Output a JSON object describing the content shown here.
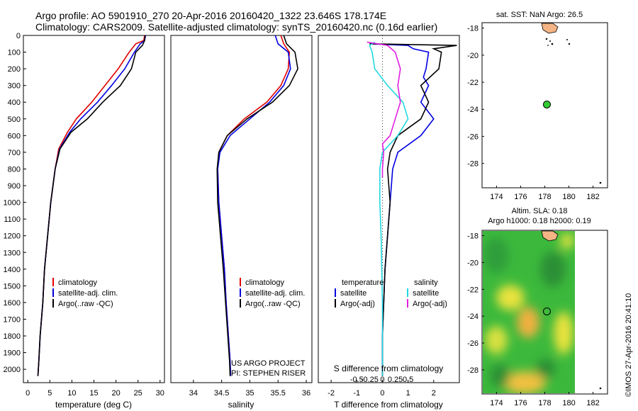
{
  "header": {
    "line1": "Argo profile: AO 5901910_270 20-Apr-2016 20160420_1322 23.646S 178.174E",
    "line2": "Climatology: CARS2009. Satellite-adjusted climatology: synTS_20160420.nc (0.16d earlier)"
  },
  "colors": {
    "climatology": "#e00000",
    "satellite": "#0000e0",
    "argo": "#000000",
    "salinity_sat": "#22d8e0",
    "salinity_argo": "#e020e0",
    "land": "#f4b483",
    "argo_marker": "#33cc33",
    "sla_green": "#3cb93c",
    "sla_yellow": "#e8e23c"
  },
  "depth_axis": {
    "ticks": [
      "0",
      "100",
      "200",
      "300",
      "400",
      "500",
      "600",
      "700",
      "800",
      "900",
      "1000",
      "1100",
      "1200",
      "1300",
      "1400",
      "1500",
      "1600",
      "1700",
      "1800",
      "1900",
      "2000"
    ],
    "range": [
      0,
      2080
    ]
  },
  "notes": {
    "project": "US ARGO PROJECT",
    "pi": "PI: STEPHEN RISER"
  },
  "map1": {
    "title": "sat. SST: NaN Argo: 26.5"
  },
  "map2": {
    "title1": "Altim. SLA: 0.18",
    "title2": "Argo h1000: 0.18 h2000: 0.19"
  },
  "credit": "©IMOS 27-Apr-2016 20:41:10",
  "chart_data": [
    {
      "type": "line",
      "name": "temperature-profile",
      "xlabel": "temperature (deg C)",
      "ylabel": "",
      "xlim": [
        -1,
        31
      ],
      "ylim": [
        2080,
        0
      ],
      "xticks": [
        0,
        5,
        10,
        15,
        20,
        25,
        30
      ],
      "legend": {
        "position": "bottom-left",
        "items": [
          "climatology",
          "satellite-adj. clim.",
          "Argo(..raw -QC)"
        ]
      },
      "series": [
        {
          "name": "climatology",
          "color": "#e00000",
          "x": [
            26.5,
            26.3,
            24.5,
            23.0,
            20.5,
            17.5,
            14.5,
            11.0,
            9.0,
            7.0,
            6.2,
            5.2,
            4.5,
            3.8,
            3.4,
            2.8,
            2.5,
            2.3
          ],
          "y": [
            0,
            30,
            50,
            100,
            200,
            300,
            400,
            500,
            580,
            680,
            800,
            1000,
            1200,
            1400,
            1600,
            1800,
            1950,
            2040
          ]
        },
        {
          "name": "satellite-adj. clim.",
          "color": "#0000e0",
          "x": [
            26.7,
            26.5,
            25.5,
            24.2,
            22.0,
            19.0,
            15.8,
            12.0,
            9.5,
            7.2,
            6.2,
            5.2,
            4.5,
            3.8,
            3.4,
            2.8,
            2.5,
            2.3
          ],
          "y": [
            0,
            30,
            50,
            100,
            200,
            300,
            400,
            500,
            580,
            680,
            800,
            1000,
            1200,
            1400,
            1600,
            1800,
            1950,
            2040
          ]
        },
        {
          "name": "Argo(..raw -QC)",
          "color": "#000000",
          "x": [
            26.6,
            26.5,
            26.0,
            24.5,
            23.5,
            21.0,
            17.0,
            13.5,
            9.8,
            7.3,
            6.2,
            5.2,
            4.5,
            3.8,
            3.4,
            2.8,
            2.5,
            2.3
          ],
          "y": [
            0,
            30,
            60,
            100,
            200,
            300,
            400,
            500,
            580,
            680,
            800,
            1000,
            1200,
            1400,
            1600,
            1800,
            1950,
            2040
          ]
        }
      ]
    },
    {
      "type": "line",
      "name": "salinity-profile",
      "xlabel": "salinity",
      "ylabel": "",
      "xlim": [
        33.6,
        36.1
      ],
      "ylim": [
        2080,
        0
      ],
      "xticks": [
        34,
        34.5,
        35,
        35.5,
        36
      ],
      "legend": {
        "position": "bottom-left",
        "items": [
          "climatology",
          "satellite-adj. clim.",
          "Argo(..raw -QC)"
        ]
      },
      "series": [
        {
          "name": "climatology",
          "color": "#e00000",
          "x": [
            35.55,
            35.6,
            35.7,
            35.68,
            35.55,
            35.3,
            34.9,
            34.6,
            34.45,
            34.43,
            34.45,
            34.5,
            34.55,
            34.58,
            34.62,
            34.65,
            34.66
          ],
          "y": [
            0,
            50,
            100,
            200,
            300,
            400,
            500,
            600,
            700,
            800,
            1000,
            1200,
            1400,
            1600,
            1800,
            1950,
            2040
          ]
        },
        {
          "name": "satellite-adj. clim.",
          "color": "#0000e0",
          "x": [
            35.45,
            35.5,
            35.68,
            35.72,
            35.6,
            35.35,
            35.0,
            34.65,
            34.47,
            34.43,
            34.45,
            34.5,
            34.55,
            34.58,
            34.62,
            34.65,
            34.66
          ],
          "y": [
            0,
            50,
            100,
            200,
            300,
            400,
            500,
            600,
            700,
            800,
            1000,
            1200,
            1400,
            1600,
            1800,
            1950,
            2040
          ]
        },
        {
          "name": "Argo(..raw -QC)",
          "color": "#000000",
          "x": [
            35.6,
            35.65,
            35.8,
            35.85,
            35.7,
            35.4,
            34.95,
            34.6,
            34.45,
            34.42,
            34.43,
            34.48,
            34.53,
            34.57,
            34.61,
            34.64,
            34.65
          ],
          "y": [
            0,
            50,
            100,
            200,
            300,
            400,
            500,
            600,
            700,
            800,
            1000,
            1200,
            1400,
            1600,
            1800,
            1950,
            2040
          ]
        }
      ]
    },
    {
      "type": "line",
      "name": "difference-profile",
      "xlabel": "T difference from climatology",
      "toplabel": "S difference from climatology",
      "ylabel": "",
      "xlim": [
        -2.5,
        3
      ],
      "ylim": [
        2080,
        0
      ],
      "xticks": [
        -2,
        -1,
        0,
        1,
        2
      ],
      "sticks": [
        "-0.5",
        "-0.25",
        "0",
        "0.25",
        "0.5"
      ],
      "legend": {
        "position": "bottom",
        "temperature_title": "temperature",
        "salinity_title": "salinity",
        "items": [
          "satellite",
          "Argo(-adj)",
          "satellite",
          "Argo(-adj)"
        ]
      },
      "series": [
        {
          "name": "T satellite",
          "color": "#0000e0",
          "x": [
            -0.5,
            1.0,
            1.2,
            1.8,
            1.7,
            1.6,
            1.8,
            1.5,
            2.0,
            1.5,
            0.6,
            0.4,
            0.3,
            0.2,
            0.1,
            0.05,
            0.0,
            0.0
          ],
          "y": [
            50,
            60,
            80,
            100,
            200,
            250,
            300,
            400,
            500,
            600,
            700,
            800,
            1000,
            1200,
            1400,
            1600,
            1800,
            2040
          ]
        },
        {
          "name": "T Argo(-adj)",
          "color": "#000000",
          "x": [
            -0.5,
            2.9,
            2.0,
            2.3,
            2.2,
            1.5,
            1.8,
            1.5,
            0.6,
            0.3,
            0.2,
            0.3,
            0.2,
            0.1,
            0.05,
            0.0,
            0.0
          ],
          "y": [
            50,
            60,
            80,
            100,
            200,
            300,
            400,
            500,
            600,
            700,
            800,
            1000,
            1200,
            1400,
            1600,
            1800,
            2040
          ]
        },
        {
          "name": "S satellite",
          "color": "#22d8e0",
          "x": [
            -0.3,
            -0.5,
            -0.4,
            -0.3,
            0.2,
            0.8,
            1.0,
            0.6,
            0.0,
            -0.1,
            -0.1,
            -0.05,
            0.0,
            0.0
          ],
          "y": [
            40,
            60,
            100,
            200,
            300,
            400,
            500,
            600,
            700,
            800,
            1000,
            1200,
            1600,
            2040
          ]
        },
        {
          "name": "S Argo(-adj)",
          "color": "#e020e0",
          "x": [
            -0.6,
            0.2,
            0.5,
            0.7,
            0.6,
            0.7,
            0.5,
            0.3,
            0.0,
            0.05,
            0.0,
            0.0
          ],
          "y": [
            40,
            60,
            100,
            200,
            300,
            400,
            500,
            600,
            650,
            700,
            800,
            850
          ]
        }
      ]
    },
    {
      "type": "scatter",
      "name": "position-map",
      "title": "sat. SST: NaN Argo: 26.5",
      "xlim": [
        172.8,
        183.2
      ],
      "ylim": [
        -29.8,
        -17.6
      ],
      "xticks": [
        174,
        176,
        178,
        180,
        182
      ],
      "yticks": [
        -18,
        -20,
        -22,
        -24,
        -26,
        -28
      ],
      "points": [
        {
          "lon": 178.174,
          "lat": -23.646
        }
      ]
    },
    {
      "type": "heatmap",
      "name": "sla-map",
      "title": "Altim. SLA: 0.18",
      "xlim": [
        172.8,
        183.2
      ],
      "ylim": [
        -29.8,
        -17.6
      ],
      "xticks": [
        174,
        176,
        178,
        180,
        182
      ],
      "yticks": [
        -18,
        -20,
        -22,
        -24,
        -26,
        -28
      ],
      "points": [
        {
          "lon": 178.174,
          "lat": -23.646
        }
      ]
    }
  ]
}
